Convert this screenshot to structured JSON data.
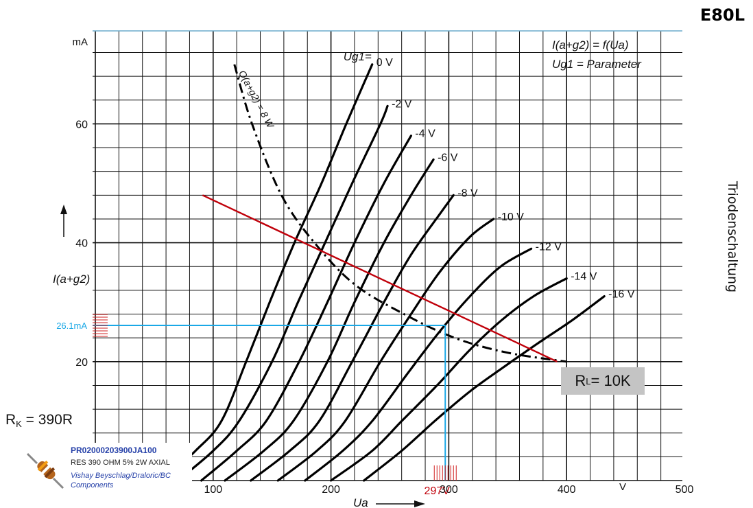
{
  "page": {
    "tube_name": "E80L",
    "side_label": "Triodenschaltung",
    "formula_line1": "I(a+g2) = f(Ua)",
    "formula_line2": "Ug1 = Parameter"
  },
  "chart_data": {
    "type": "line",
    "title": "",
    "xlabel": "Ua",
    "ylabel": "I(a+g2)",
    "x_unit": "V",
    "y_unit": "mA",
    "xlim": [
      0,
      500
    ],
    "ylim": [
      0,
      70
    ],
    "x_ticks": [
      100,
      200,
      300,
      400,
      500
    ],
    "y_ticks": [
      20,
      40,
      60
    ],
    "grid": true,
    "parameter_label": "Ug1",
    "series": [
      {
        "name": "0 V",
        "points": [
          [
            57,
            0
          ],
          [
            85,
            5
          ],
          [
            107,
            10
          ],
          [
            128,
            20
          ],
          [
            148,
            30
          ],
          [
            169,
            40
          ],
          [
            192,
            50
          ],
          [
            213,
            60
          ],
          [
            235,
            70
          ]
        ]
      },
      {
        "name": "-2 V",
        "points": [
          [
            70,
            0
          ],
          [
            100,
            5
          ],
          [
            122,
            10
          ],
          [
            150,
            20
          ],
          [
            172,
            30
          ],
          [
            195,
            40
          ],
          [
            218,
            50
          ],
          [
            242,
            60
          ],
          [
            248,
            63
          ]
        ]
      },
      {
        "name": "-4 V",
        "points": [
          [
            90,
            0
          ],
          [
            120,
            5
          ],
          [
            145,
            10
          ],
          [
            173,
            20
          ],
          [
            197,
            30
          ],
          [
            220,
            40
          ],
          [
            245,
            50
          ],
          [
            268,
            58
          ]
        ]
      },
      {
        "name": "-6 V",
        "points": [
          [
            110,
            0
          ],
          [
            143,
            5
          ],
          [
            168,
            10
          ],
          [
            197,
            20
          ],
          [
            220,
            30
          ],
          [
            245,
            40
          ],
          [
            268,
            48
          ],
          [
            287,
            54
          ]
        ]
      },
      {
        "name": "-8 V",
        "points": [
          [
            132,
            0
          ],
          [
            165,
            5
          ],
          [
            190,
            10
          ],
          [
            218,
            20
          ],
          [
            245,
            30
          ],
          [
            268,
            38
          ],
          [
            293,
            45
          ],
          [
            304,
            48
          ]
        ]
      },
      {
        "name": "-10 V",
        "points": [
          [
            155,
            0
          ],
          [
            188,
            5
          ],
          [
            212,
            10
          ],
          [
            242,
            20
          ],
          [
            268,
            28
          ],
          [
            292,
            35
          ],
          [
            318,
            41
          ],
          [
            338,
            44
          ]
        ]
      },
      {
        "name": "-12 V",
        "points": [
          [
            178,
            0
          ],
          [
            210,
            5
          ],
          [
            235,
            10
          ],
          [
            265,
            18
          ],
          [
            292,
            25
          ],
          [
            318,
            31
          ],
          [
            344,
            36
          ],
          [
            370,
            39
          ]
        ]
      },
      {
        "name": "-14 V",
        "points": [
          [
            200,
            0
          ],
          [
            235,
            5
          ],
          [
            260,
            10
          ],
          [
            290,
            16
          ],
          [
            318,
            22
          ],
          [
            345,
            27
          ],
          [
            372,
            31
          ],
          [
            400,
            34
          ]
        ]
      },
      {
        "name": "-16 V",
        "points": [
          [
            228,
            0
          ],
          [
            260,
            5
          ],
          [
            288,
            10
          ],
          [
            318,
            15
          ],
          [
            346,
            19
          ],
          [
            375,
            23
          ],
          [
            405,
            27
          ],
          [
            432,
            31
          ]
        ]
      }
    ],
    "max_dissipation": {
      "label": "Q(a+g2) = 8 W",
      "points": [
        [
          118,
          70
        ],
        [
          133,
          60
        ],
        [
          158,
          48
        ],
        [
          186,
          40
        ],
        [
          220,
          33
        ],
        [
          262,
          28
        ],
        [
          305,
          24
        ],
        [
          350,
          21.5
        ],
        [
          400,
          20
        ]
      ]
    },
    "load_line": {
      "label": "RL = 10K",
      "points": [
        [
          91,
          48
        ],
        [
          392,
          20
        ]
      ],
      "color": "#c0000a"
    },
    "operating_point": {
      "current_label": "26.1mA",
      "voltage_label": "297V",
      "current": 26.1,
      "voltage": 297,
      "color": "#1aa8e6"
    }
  },
  "annotations": {
    "rl_label": "R",
    "rl_sub": "L",
    "rl_value": " = 10K",
    "rk_label": "R",
    "rk_sub": "K",
    "rk_value": " = 390R"
  },
  "part": {
    "number": "PR02000203900JA100",
    "description": "RES 390 OHM 5% 2W AXIAL",
    "manufacturer": "Vishay Beyschlag/Draloric/BC Components"
  },
  "colors": {
    "grid": "#111111",
    "curve": "#000000",
    "load_line": "#c0000a",
    "operating_point": "#1aa8e6",
    "label_box": "#c4c4c4",
    "part_text": "#2540a8"
  }
}
